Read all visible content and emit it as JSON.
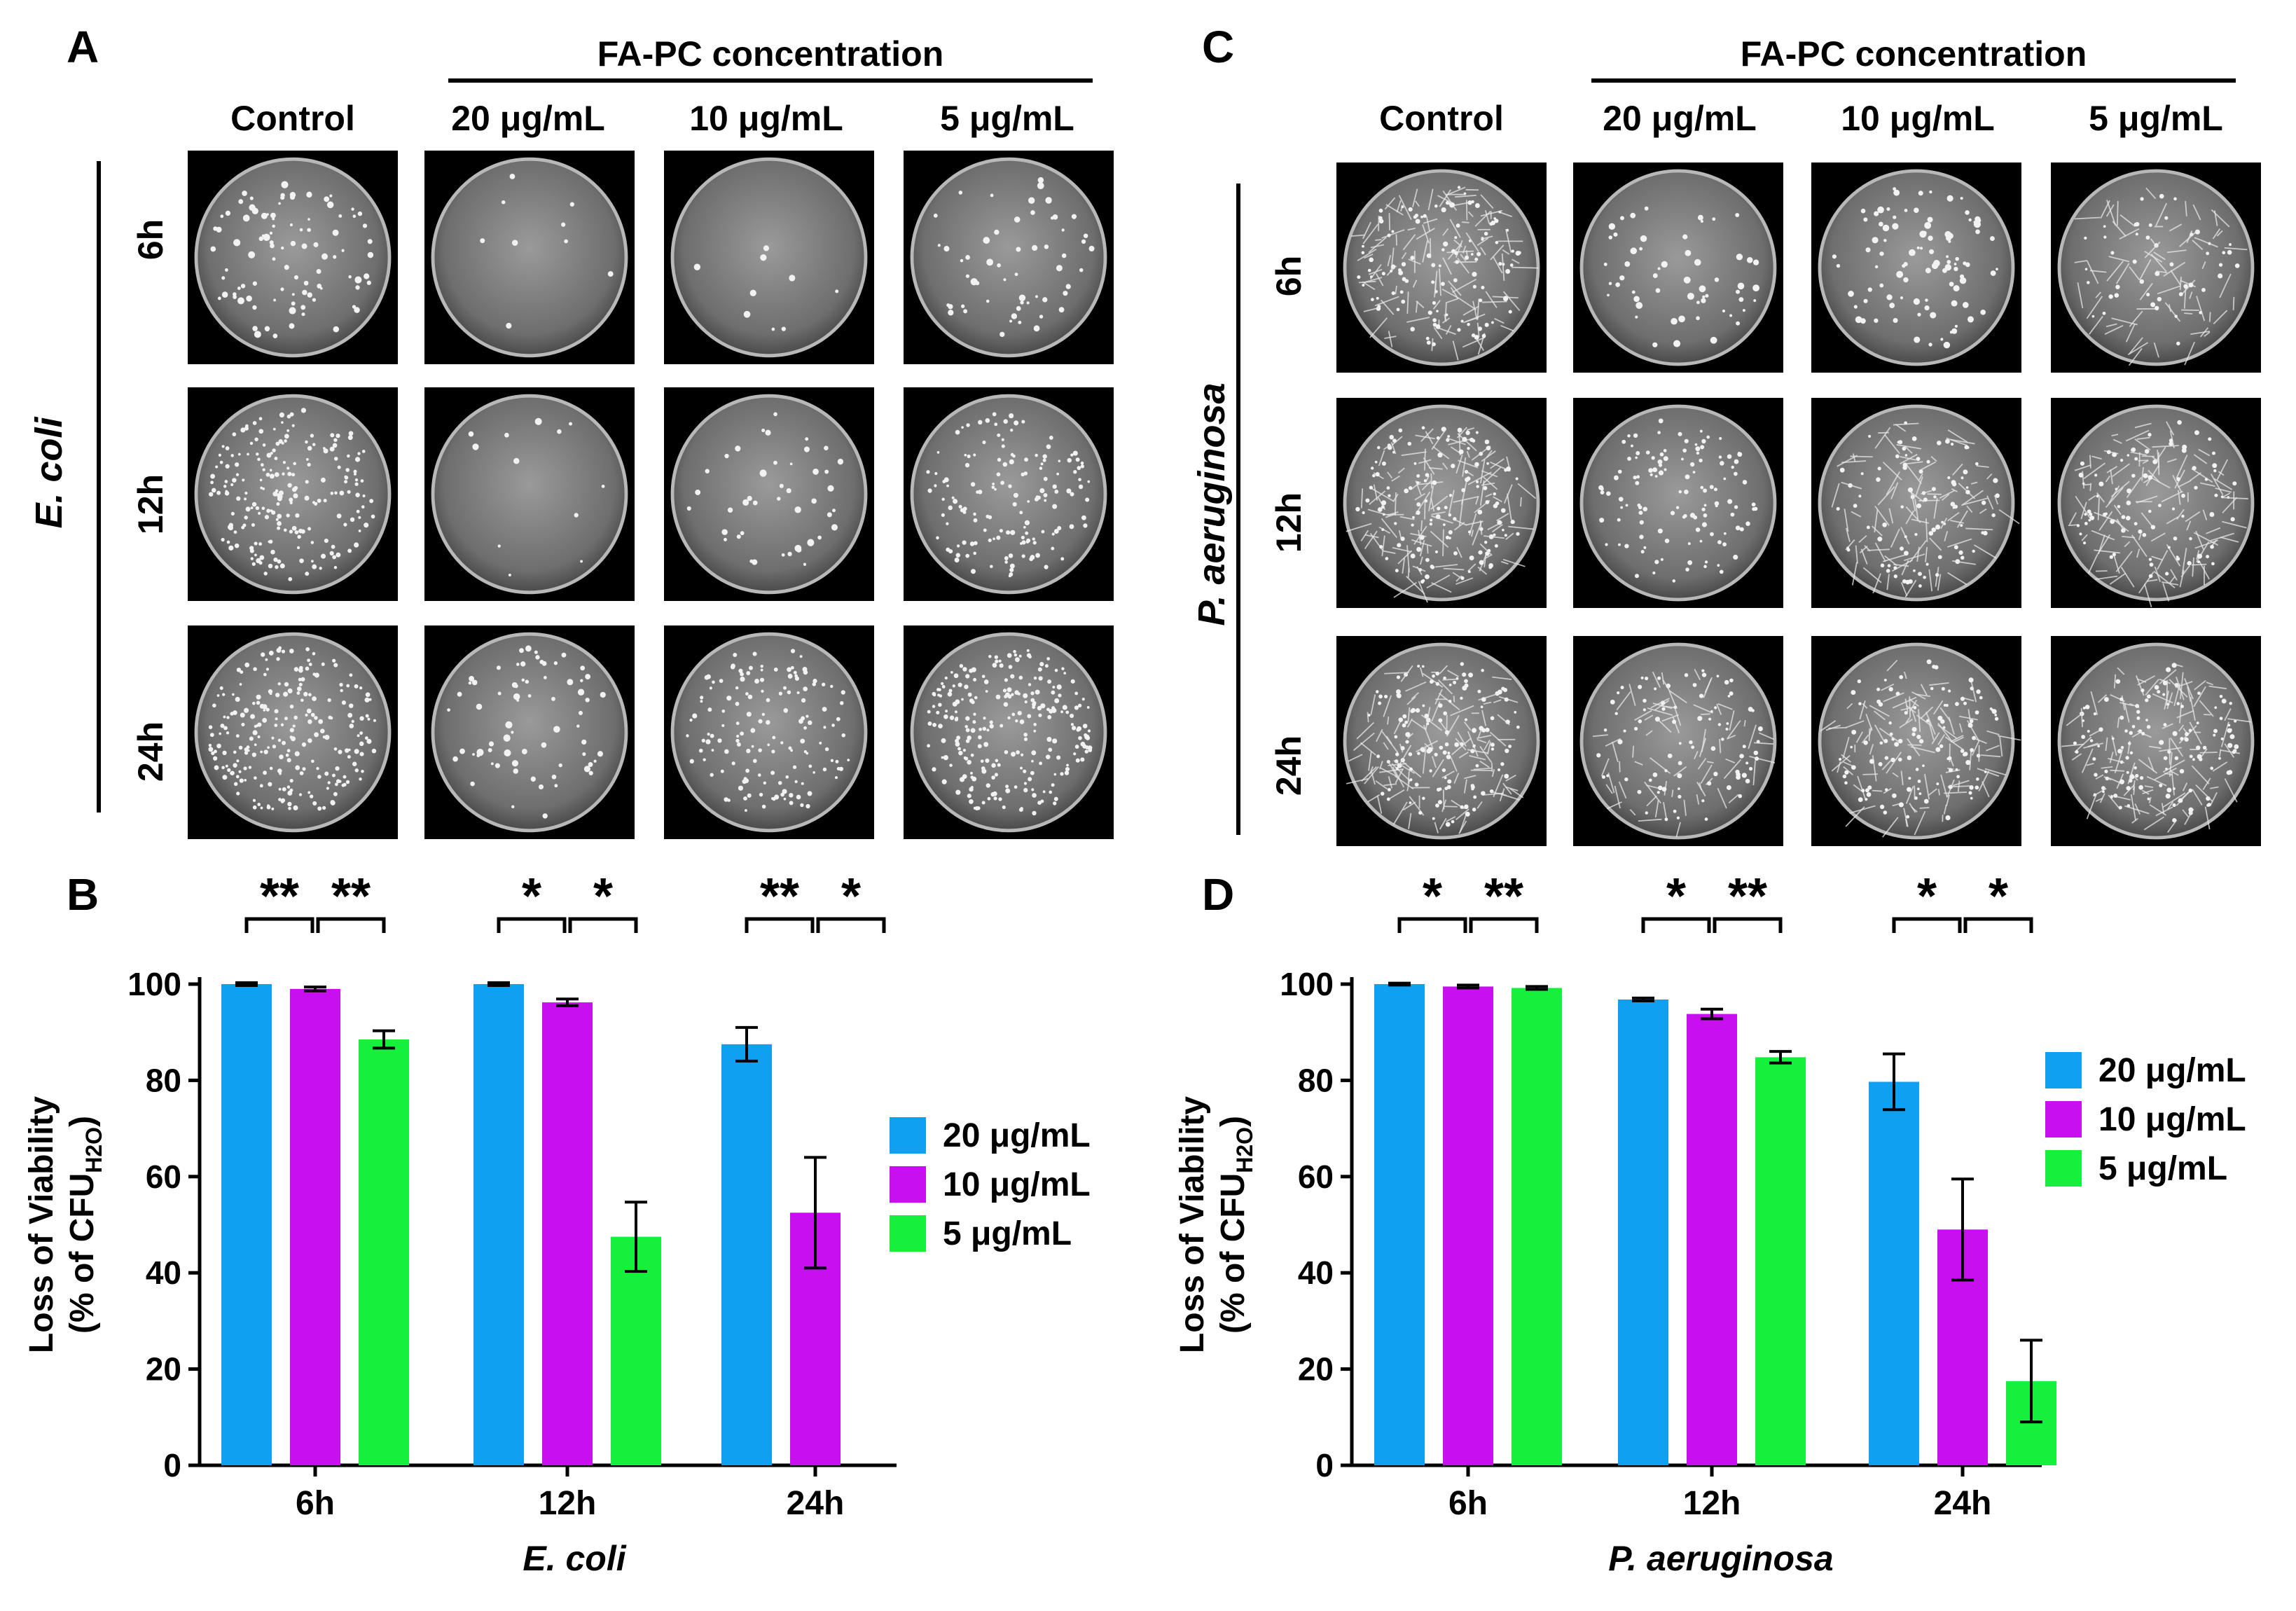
{
  "figure": {
    "panel_letters": [
      "A",
      "B",
      "C",
      "D"
    ],
    "concentration_header": "FA-PC concentration",
    "column_headers": [
      "Control",
      "20 μg/mL",
      "10 μg/mL",
      "5 μg/mL"
    ],
    "row_labels": [
      "6h",
      "12h",
      "24h"
    ],
    "organism_left": "E. coli",
    "organism_right": "P. aeruginosa",
    "plate_panel_left": {
      "density": [
        [
          0.35,
          0.02,
          0.02,
          0.2
        ],
        [
          0.8,
          0.03,
          0.15,
          0.55
        ],
        [
          0.9,
          0.25,
          0.55,
          0.95
        ]
      ],
      "colony_style": [
        [
          "dot",
          "dot",
          "dot",
          "dot"
        ],
        [
          "dot",
          "dot",
          "dot",
          "dot"
        ],
        [
          "dot",
          "dot",
          "dot",
          "dot"
        ]
      ]
    },
    "plate_panel_right": {
      "density": [
        [
          0.9,
          0.2,
          0.35,
          0.45
        ],
        [
          1.0,
          0.45,
          0.7,
          0.8
        ],
        [
          1.0,
          0.6,
          0.85,
          0.95
        ]
      ],
      "colony_style": [
        [
          "fibrous",
          "dot",
          "dot",
          "fibrous"
        ],
        [
          "fibrous",
          "dot",
          "fibrous",
          "fibrous"
        ],
        [
          "fibrous",
          "fibrous",
          "fibrous",
          "fibrous"
        ]
      ]
    },
    "colors": {
      "20": "#0fa0f2",
      "10": "#c80ff0",
      "5": "#14f03c"
    }
  },
  "chart_data": [
    {
      "panel": "B",
      "type": "bar",
      "categories": [
        "6h",
        "12h",
        "24h"
      ],
      "series": [
        {
          "name": "20 μg/mL",
          "color": "#0fa0f2",
          "values": [
            100,
            100,
            87.5
          ],
          "err": [
            0.3,
            0.3,
            3.5
          ]
        },
        {
          "name": "10 μg/mL",
          "color": "#c80ff0",
          "values": [
            99,
            96.2,
            52.5
          ],
          "err": [
            0.4,
            0.7,
            11.5
          ]
        },
        {
          "name": "5 μg/mL",
          "color": "#14f03c",
          "values": [
            88.5,
            47.5,
            0
          ],
          "err": [
            1.8,
            7.2,
            0
          ]
        }
      ],
      "ylabel_line1": "Loss of Viability",
      "ylabel_line2_prefix": "(% of CFU",
      "ylabel_sub": "H2O",
      "ylabel_line2_suffix": ")",
      "xlabel": "E. coli",
      "ylim": [
        0,
        100
      ],
      "yticks": [
        "0",
        "20",
        "40",
        "60",
        "80",
        "100"
      ],
      "significance": [
        [
          "**",
          "**"
        ],
        [
          "*",
          "*"
        ],
        [
          "**",
          "*"
        ]
      ],
      "legend_position": "right"
    },
    {
      "panel": "D",
      "type": "bar",
      "categories": [
        "6h",
        "12h",
        "24h"
      ],
      "series": [
        {
          "name": "20 μg/mL",
          "color": "#0fa0f2",
          "values": [
            100,
            96.8,
            79.7
          ],
          "err": [
            0.2,
            0.3,
            5.8
          ]
        },
        {
          "name": "10 μg/mL",
          "color": "#c80ff0",
          "values": [
            99.5,
            93.8,
            49
          ],
          "err": [
            0.3,
            1.0,
            10.5
          ]
        },
        {
          "name": "5 μg/mL",
          "color": "#14f03c",
          "values": [
            99.2,
            84.8,
            17.5
          ],
          "err": [
            0.3,
            1.2,
            8.5
          ]
        }
      ],
      "ylabel_line1": "Loss of Viability",
      "ylabel_line2_prefix": "(% of CFU",
      "ylabel_sub": "H2O",
      "ylabel_line2_suffix": ")",
      "xlabel": "P. aeruginosa",
      "ylim": [
        0,
        100
      ],
      "yticks": [
        "0",
        "20",
        "40",
        "60",
        "80",
        "100"
      ],
      "significance": [
        [
          "*",
          "**"
        ],
        [
          "*",
          "**"
        ],
        [
          "*",
          "*"
        ]
      ],
      "legend_position": "right"
    }
  ]
}
